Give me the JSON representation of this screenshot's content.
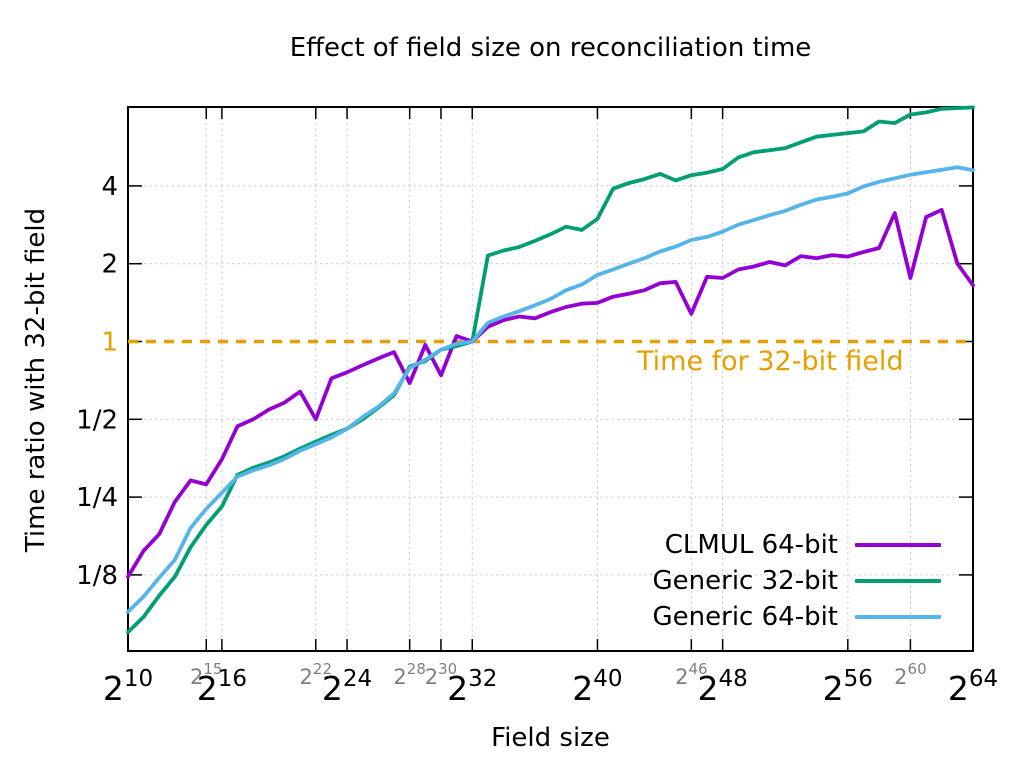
{
  "title": "Effect of field size on reconciliation time",
  "x_axis_label": "Field size",
  "y_axis_label": "Time ratio with 32-bit field",
  "reference_line": {
    "label": "Time for 32-bit field",
    "value": 1,
    "color": "#E69F00"
  },
  "colors": {
    "background": "#ffffff",
    "border": "#000000",
    "grid": "#c9c9c9",
    "minor_tick_label": "#7f7f7f",
    "text": "#000000"
  },
  "chart_data": {
    "type": "line",
    "x_scale": "log2",
    "y_scale": "log2",
    "xlabel": "Field size",
    "ylabel": "Time ratio with 32-bit field",
    "x_exponent_range": [
      10,
      64
    ],
    "ylim": [
      0.0634,
      8.08
    ],
    "x_major_tick_exponents": [
      10,
      16,
      24,
      32,
      40,
      48,
      56,
      64
    ],
    "x_minor_tick_exponents": [
      15,
      22,
      28,
      30,
      46,
      60
    ],
    "x_tick_base": "2",
    "y_ticks": [
      {
        "label": "4",
        "value": 4
      },
      {
        "label": "2",
        "value": 2
      },
      {
        "label": "1",
        "value": 1,
        "color": "#E69F00"
      },
      {
        "label": "1/2",
        "value": 0.5
      },
      {
        "label": "1/4",
        "value": 0.25
      },
      {
        "label": "1/8",
        "value": 0.125
      }
    ],
    "grid": true,
    "legend_position": "bottom-right-inside",
    "x_exponents": [
      10,
      11,
      12,
      13,
      14,
      15,
      16,
      17,
      18,
      19,
      20,
      21,
      22,
      23,
      24,
      25,
      26,
      27,
      28,
      29,
      30,
      31,
      32,
      33,
      34,
      35,
      36,
      37,
      38,
      39,
      40,
      41,
      42,
      43,
      44,
      45,
      46,
      47,
      48,
      49,
      50,
      51,
      52,
      53,
      54,
      55,
      56,
      57,
      58,
      59,
      60,
      61,
      62,
      63,
      64
    ],
    "series": [
      {
        "name": "CLMUL 64-bit",
        "color": "#9400D3",
        "values": [
          0.123,
          0.155,
          0.18,
          0.24,
          0.29,
          0.28,
          0.35,
          0.47,
          0.5,
          0.545,
          0.58,
          0.64,
          0.5,
          0.72,
          0.76,
          0.81,
          0.86,
          0.91,
          0.69,
          0.97,
          0.74,
          1.05,
          1.0,
          1.14,
          1.21,
          1.25,
          1.23,
          1.3,
          1.36,
          1.4,
          1.41,
          1.49,
          1.53,
          1.58,
          1.68,
          1.7,
          1.28,
          1.78,
          1.76,
          1.9,
          1.95,
          2.03,
          1.97,
          2.14,
          2.1,
          2.16,
          2.13,
          2.22,
          2.3,
          3.14,
          1.76,
          3.03,
          3.23,
          2.0,
          1.65
        ]
      },
      {
        "name": "Generic 32-bit",
        "color": "#009E73",
        "values": [
          0.075,
          0.086,
          0.104,
          0.123,
          0.16,
          0.195,
          0.23,
          0.305,
          0.325,
          0.34,
          0.36,
          0.385,
          0.41,
          0.435,
          0.46,
          0.5,
          0.555,
          0.62,
          0.8,
          0.84,
          0.93,
          0.96,
          1.0,
          2.15,
          2.25,
          2.32,
          2.45,
          2.6,
          2.78,
          2.7,
          2.98,
          3.9,
          4.1,
          4.25,
          4.45,
          4.2,
          4.4,
          4.5,
          4.65,
          5.15,
          5.4,
          5.5,
          5.6,
          5.9,
          6.2,
          6.3,
          6.4,
          6.5,
          7.1,
          7.0,
          7.55,
          7.7,
          7.95,
          8.0,
          8.05
        ]
      },
      {
        "name": "Generic 64-bit",
        "color": "#56B4E9",
        "values": [
          0.09,
          0.103,
          0.122,
          0.143,
          0.19,
          0.225,
          0.26,
          0.3,
          0.317,
          0.332,
          0.351,
          0.378,
          0.4,
          0.425,
          0.46,
          0.51,
          0.56,
          0.63,
          0.79,
          0.85,
          0.93,
          0.98,
          1.0,
          1.18,
          1.25,
          1.31,
          1.38,
          1.46,
          1.58,
          1.66,
          1.81,
          1.9,
          2.0,
          2.1,
          2.23,
          2.33,
          2.47,
          2.54,
          2.66,
          2.83,
          2.95,
          3.08,
          3.2,
          3.38,
          3.54,
          3.63,
          3.74,
          3.98,
          4.15,
          4.28,
          4.42,
          4.52,
          4.62,
          4.72,
          4.6
        ]
      }
    ]
  }
}
